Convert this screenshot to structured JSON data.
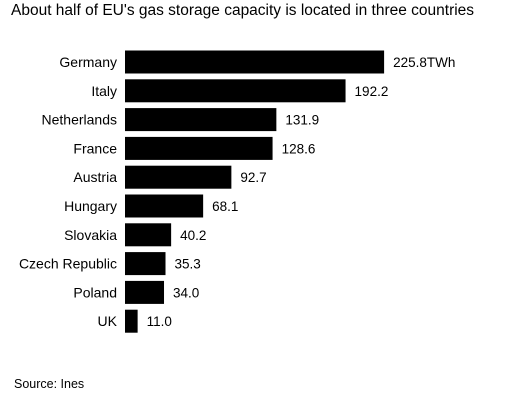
{
  "title": "About half of EU's gas storage capacity is located in three countries",
  "source": "Source: Ines",
  "chart_data": {
    "type": "bar",
    "orientation": "horizontal",
    "categories": [
      "Germany",
      "Italy",
      "Netherlands",
      "France",
      "Austria",
      "Hungary",
      "Slovakia",
      "Czech Republic",
      "Poland",
      "UK"
    ],
    "values": [
      225.8,
      192.2,
      131.9,
      128.6,
      92.7,
      68.1,
      40.2,
      35.3,
      34.0,
      11.0
    ],
    "value_labels": [
      "225.8TWh",
      "192.2",
      "131.9",
      "128.6",
      "92.7",
      "68.1",
      "40.2",
      "35.3",
      "34.0",
      "11.0"
    ],
    "unit": "TWh",
    "bar_color": "#000000",
    "grid": false,
    "legend": "none"
  }
}
